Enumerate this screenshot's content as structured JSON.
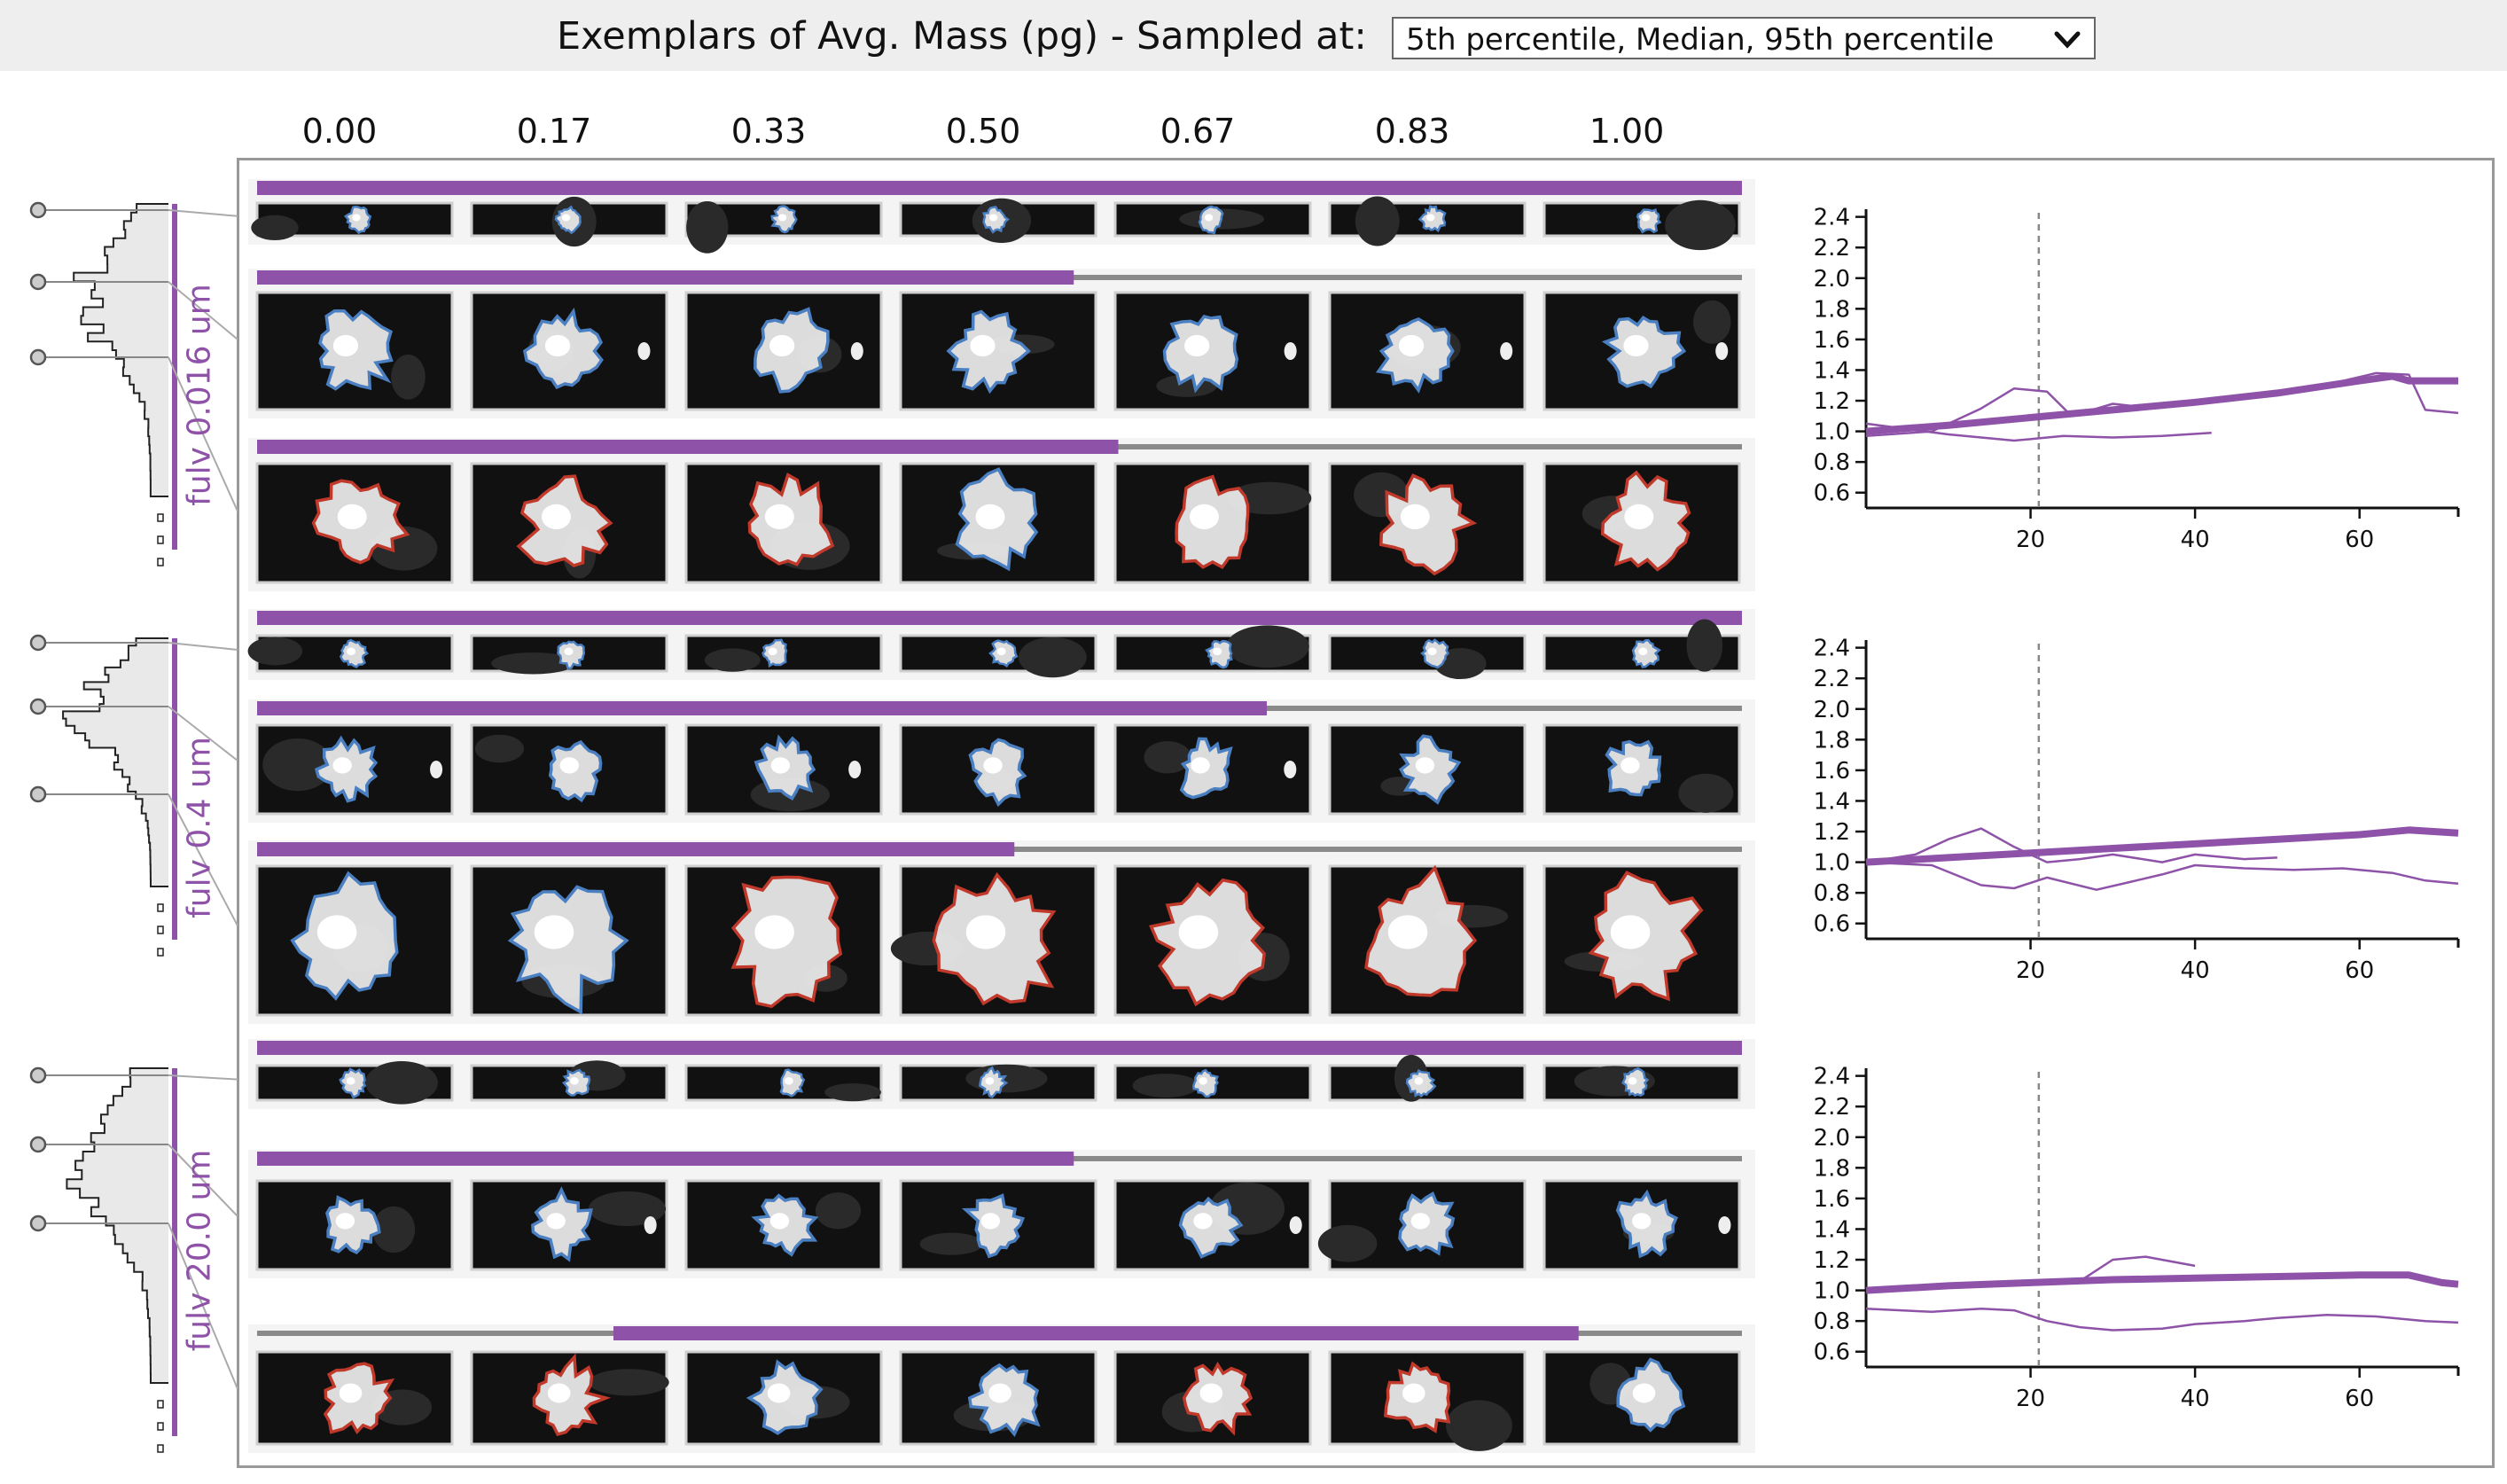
{
  "header": {
    "title": "Exemplars of Avg. Mass (pg) - Sampled at:",
    "select_value": "5th percentile, Median, 95th percentile",
    "select_icon": "chevron-down-icon"
  },
  "columns": [
    "0.00",
    "0.17",
    "0.33",
    "0.50",
    "0.67",
    "0.83",
    "1.00"
  ],
  "colors": {
    "accent": "#8e53a8",
    "outline_blue": "#4a7fc1",
    "outline_red": "#c0392b",
    "track": "#8a8a8a",
    "row_bg": "#e9e9e9"
  },
  "groups": [
    {
      "label": "fulv 0.016 um",
      "rows": [
        {
          "percentile": "5th percentile",
          "bar": [
            0.0,
            1.0
          ],
          "outlines": [
            "blue",
            "blue",
            "blue",
            "blue",
            "blue",
            "blue",
            "blue"
          ]
        },
        {
          "percentile": "Median",
          "bar": [
            0.0,
            0.55
          ],
          "outlines": [
            "blue",
            "blue",
            "blue",
            "blue",
            "blue",
            "blue",
            "blue"
          ]
        },
        {
          "percentile": "95th percentile",
          "bar": [
            0.0,
            0.58
          ],
          "outlines": [
            "red",
            "red",
            "red",
            "blue",
            "red",
            "red",
            "red"
          ]
        }
      ]
    },
    {
      "label": "fulv 0.4 um",
      "rows": [
        {
          "percentile": "5th percentile",
          "bar": [
            0.0,
            1.0
          ],
          "outlines": [
            "blue",
            "blue",
            "blue",
            "blue",
            "blue",
            "blue",
            "blue"
          ]
        },
        {
          "percentile": "Median",
          "bar": [
            0.0,
            0.68
          ],
          "outlines": [
            "blue",
            "blue",
            "blue",
            "blue",
            "blue",
            "blue",
            "blue"
          ]
        },
        {
          "percentile": "95th percentile",
          "bar": [
            0.0,
            0.51
          ],
          "outlines": [
            "blue",
            "blue",
            "red",
            "red",
            "red",
            "red",
            "red"
          ]
        }
      ]
    },
    {
      "label": "fulv 20.0 um",
      "rows": [
        {
          "percentile": "5th percentile",
          "bar": [
            0.0,
            1.0
          ],
          "outlines": [
            "blue",
            "blue",
            "blue",
            "blue",
            "blue",
            "blue",
            "blue"
          ]
        },
        {
          "percentile": "Median",
          "bar": [
            0.0,
            0.55
          ],
          "outlines": [
            "blue",
            "blue",
            "blue",
            "blue",
            "blue",
            "blue",
            "blue"
          ]
        },
        {
          "percentile": "95th percentile",
          "bar": [
            0.24,
            0.89
          ],
          "outlines": [
            "red",
            "red",
            "blue",
            "blue",
            "red",
            "red",
            "blue"
          ]
        }
      ]
    }
  ],
  "chart_data": [
    {
      "type": "line",
      "xlim": [
        0,
        72
      ],
      "ylim": [
        0.5,
        2.45
      ],
      "xticks": [
        "20",
        "40",
        "60"
      ],
      "xtick_values": [
        20,
        40,
        60
      ],
      "yticks": [
        "2.4",
        "2.2",
        "2.0",
        "1.8",
        "1.6",
        "1.4",
        "1.2",
        "1.0",
        "0.8",
        "0.6"
      ],
      "ytick_values": [
        2.4,
        2.2,
        2.0,
        1.8,
        1.6,
        1.4,
        1.2,
        1.0,
        0.8,
        0.6
      ],
      "marker_x": 21,
      "series": [
        {
          "thick": true,
          "x": [
            0,
            10,
            20,
            30,
            40,
            50,
            60,
            64,
            66,
            72
          ],
          "y": [
            1.0,
            1.04,
            1.09,
            1.14,
            1.19,
            1.25,
            1.33,
            1.36,
            1.33,
            1.33
          ]
        },
        {
          "thick": false,
          "x": [
            0,
            8,
            14,
            18,
            22,
            25,
            30,
            35,
            40,
            45,
            50,
            55,
            58,
            62,
            66,
            68,
            72
          ],
          "y": [
            0.97,
            1.0,
            1.15,
            1.28,
            1.26,
            1.1,
            1.18,
            1.15,
            1.2,
            1.23,
            1.26,
            1.3,
            1.33,
            1.38,
            1.37,
            1.14,
            1.12
          ]
        },
        {
          "thick": false,
          "x": [
            0,
            10,
            18,
            24,
            30,
            36,
            42
          ],
          "y": [
            1.05,
            0.98,
            0.94,
            0.97,
            0.96,
            0.97,
            0.99
          ]
        }
      ]
    },
    {
      "type": "line",
      "xlim": [
        0,
        72
      ],
      "ylim": [
        0.5,
        2.45
      ],
      "xticks": [
        "20",
        "40",
        "60"
      ],
      "xtick_values": [
        20,
        40,
        60
      ],
      "yticks": [
        "2.4",
        "2.2",
        "2.0",
        "1.8",
        "1.6",
        "1.4",
        "1.2",
        "1.0",
        "0.8",
        "0.6"
      ],
      "ytick_values": [
        2.4,
        2.2,
        2.0,
        1.8,
        1.6,
        1.4,
        1.2,
        1.0,
        0.8,
        0.6
      ],
      "marker_x": 21,
      "series": [
        {
          "thick": true,
          "x": [
            0,
            10,
            20,
            30,
            40,
            50,
            60,
            66,
            72
          ],
          "y": [
            1.0,
            1.03,
            1.06,
            1.09,
            1.12,
            1.15,
            1.18,
            1.21,
            1.19
          ]
        },
        {
          "thick": false,
          "x": [
            0,
            6,
            10,
            14,
            18,
            22,
            26,
            30,
            36,
            40,
            46,
            50
          ],
          "y": [
            1.0,
            1.05,
            1.15,
            1.22,
            1.1,
            1.0,
            1.02,
            1.05,
            1.0,
            1.05,
            1.02,
            1.03
          ]
        },
        {
          "thick": false,
          "x": [
            0,
            8,
            14,
            18,
            22,
            28,
            32,
            36,
            40,
            46,
            52,
            58,
            64,
            68,
            72
          ],
          "y": [
            1.0,
            0.98,
            0.85,
            0.83,
            0.9,
            0.82,
            0.87,
            0.92,
            0.98,
            0.96,
            0.95,
            0.96,
            0.93,
            0.88,
            0.86
          ]
        }
      ]
    },
    {
      "type": "line",
      "xlim": [
        0,
        72
      ],
      "ylim": [
        0.5,
        2.45
      ],
      "xticks": [
        "20",
        "40",
        "60"
      ],
      "xtick_values": [
        20,
        40,
        60
      ],
      "yticks": [
        "2.4",
        "2.2",
        "2.0",
        "1.8",
        "1.6",
        "1.4",
        "1.2",
        "1.0",
        "0.8",
        "0.6"
      ],
      "ytick_values": [
        2.4,
        2.2,
        2.0,
        1.8,
        1.6,
        1.4,
        1.2,
        1.0,
        0.8,
        0.6
      ],
      "marker_x": 21,
      "series": [
        {
          "thick": true,
          "x": [
            0,
            10,
            20,
            30,
            40,
            50,
            60,
            66,
            70,
            72
          ],
          "y": [
            1.0,
            1.03,
            1.05,
            1.07,
            1.08,
            1.09,
            1.1,
            1.1,
            1.05,
            1.04
          ]
        },
        {
          "thick": false,
          "x": [
            0,
            10,
            20,
            26,
            30,
            34,
            38,
            40
          ],
          "y": [
            1.0,
            1.04,
            1.05,
            1.06,
            1.2,
            1.22,
            1.18,
            1.16
          ]
        },
        {
          "thick": false,
          "x": [
            0,
            8,
            14,
            18,
            22,
            26,
            30,
            36,
            40,
            46,
            50,
            56,
            62,
            68,
            72
          ],
          "y": [
            0.88,
            0.86,
            0.88,
            0.87,
            0.8,
            0.76,
            0.74,
            0.75,
            0.78,
            0.8,
            0.82,
            0.84,
            0.83,
            0.8,
            0.79
          ]
        }
      ]
    }
  ]
}
